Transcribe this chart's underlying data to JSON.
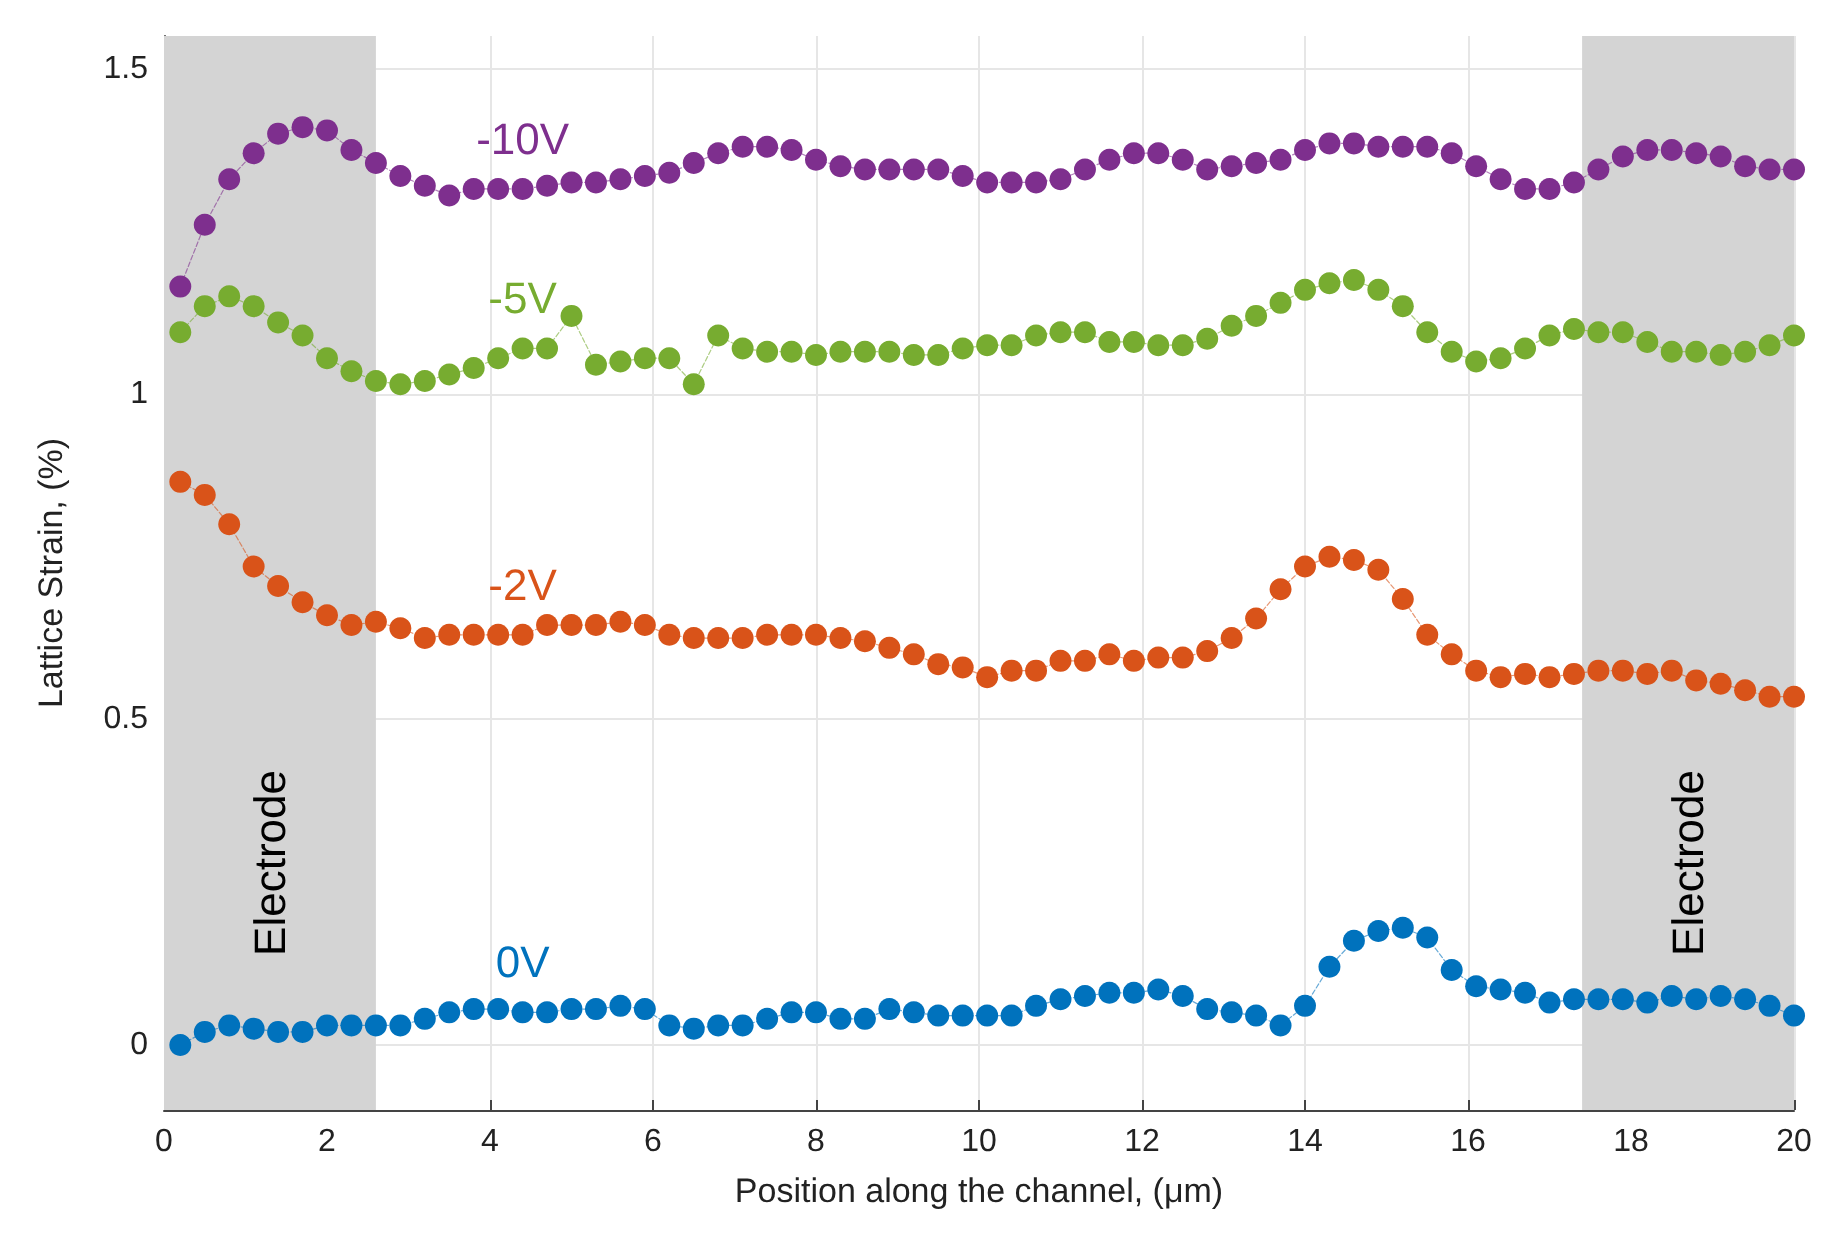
{
  "chart_data": {
    "type": "line",
    "xlabel": "Position along the channel, (μm)",
    "ylabel": "Lattice Strain, (%)",
    "x": [
      0.2,
      0.5,
      0.8,
      1.1,
      1.4,
      1.7,
      2.0,
      2.3,
      2.6,
      2.9,
      3.2,
      3.5,
      3.8,
      4.1,
      4.4,
      4.7,
      5.0,
      5.3,
      5.6,
      5.9,
      6.2,
      6.5,
      6.8,
      7.1,
      7.4,
      7.7,
      8.0,
      8.3,
      8.6,
      8.9,
      9.2,
      9.5,
      9.8,
      10.1,
      10.4,
      10.7,
      11.0,
      11.3,
      11.6,
      11.9,
      12.2,
      12.5,
      12.8,
      13.1,
      13.4,
      13.7,
      14.0,
      14.3,
      14.6,
      14.9,
      15.2,
      15.5,
      15.8,
      16.1,
      16.4,
      16.7,
      17.0,
      17.3,
      17.6,
      17.9,
      18.2,
      18.5,
      18.8,
      19.1,
      19.4,
      19.7,
      20.0
    ],
    "series": [
      {
        "name": "-10V",
        "color": "#7e2f8e",
        "values": [
          1.165,
          1.26,
          1.33,
          1.37,
          1.4,
          1.41,
          1.405,
          1.375,
          1.355,
          1.335,
          1.32,
          1.305,
          1.315,
          1.315,
          1.315,
          1.32,
          1.325,
          1.325,
          1.33,
          1.335,
          1.34,
          1.355,
          1.37,
          1.38,
          1.38,
          1.375,
          1.36,
          1.35,
          1.345,
          1.345,
          1.345,
          1.345,
          1.335,
          1.325,
          1.325,
          1.325,
          1.33,
          1.345,
          1.36,
          1.37,
          1.37,
          1.36,
          1.345,
          1.35,
          1.355,
          1.36,
          1.375,
          1.385,
          1.385,
          1.38,
          1.38,
          1.38,
          1.37,
          1.35,
          1.33,
          1.315,
          1.315,
          1.325,
          1.345,
          1.365,
          1.375,
          1.375,
          1.37,
          1.365,
          1.35,
          1.345,
          1.345
        ]
      },
      {
        "name": "-5V",
        "color": "#77ac30",
        "values": [
          1.095,
          1.135,
          1.15,
          1.135,
          1.11,
          1.09,
          1.055,
          1.035,
          1.02,
          1.015,
          1.02,
          1.03,
          1.04,
          1.055,
          1.07,
          1.07,
          1.12,
          1.045,
          1.05,
          1.055,
          1.055,
          1.015,
          1.09,
          1.07,
          1.065,
          1.065,
          1.06,
          1.065,
          1.065,
          1.065,
          1.06,
          1.06,
          1.07,
          1.075,
          1.075,
          1.09,
          1.095,
          1.095,
          1.08,
          1.08,
          1.075,
          1.075,
          1.085,
          1.105,
          1.12,
          1.14,
          1.16,
          1.17,
          1.175,
          1.16,
          1.135,
          1.095,
          1.065,
          1.05,
          1.055,
          1.07,
          1.09,
          1.1,
          1.095,
          1.095,
          1.08,
          1.065,
          1.065,
          1.06,
          1.065,
          1.075,
          1.09
        ]
      },
      {
        "name": "-2V",
        "color": "#d95319",
        "values": [
          0.865,
          0.845,
          0.8,
          0.735,
          0.705,
          0.68,
          0.66,
          0.645,
          0.65,
          0.64,
          0.625,
          0.63,
          0.63,
          0.63,
          0.63,
          0.645,
          0.645,
          0.645,
          0.65,
          0.645,
          0.63,
          0.625,
          0.625,
          0.625,
          0.63,
          0.63,
          0.63,
          0.625,
          0.62,
          0.61,
          0.6,
          0.585,
          0.58,
          0.565,
          0.575,
          0.575,
          0.59,
          0.59,
          0.6,
          0.59,
          0.595,
          0.595,
          0.605,
          0.625,
          0.655,
          0.7,
          0.735,
          0.75,
          0.745,
          0.73,
          0.685,
          0.63,
          0.6,
          0.575,
          0.565,
          0.57,
          0.565,
          0.57,
          0.575,
          0.575,
          0.57,
          0.575,
          0.56,
          0.555,
          0.545,
          0.535,
          0.535
        ]
      },
      {
        "name": "0V",
        "color": "#0072bd",
        "values": [
          0.0,
          0.02,
          0.03,
          0.025,
          0.02,
          0.02,
          0.03,
          0.03,
          0.03,
          0.03,
          0.04,
          0.05,
          0.055,
          0.055,
          0.05,
          0.05,
          0.055,
          0.055,
          0.06,
          0.055,
          0.03,
          0.025,
          0.03,
          0.03,
          0.04,
          0.05,
          0.05,
          0.04,
          0.04,
          0.055,
          0.05,
          0.045,
          0.045,
          0.045,
          0.045,
          0.06,
          0.07,
          0.075,
          0.08,
          0.08,
          0.085,
          0.075,
          0.055,
          0.05,
          0.045,
          0.03,
          0.06,
          0.12,
          0.16,
          0.175,
          0.18,
          0.165,
          0.115,
          0.09,
          0.085,
          0.08,
          0.065,
          0.07,
          0.07,
          0.07,
          0.065,
          0.075,
          0.07,
          0.075,
          0.07,
          0.06,
          0.045
        ]
      }
    ],
    "xlim": [
      0,
      20
    ],
    "xticks": [
      0,
      2,
      4,
      6,
      8,
      10,
      12,
      14,
      16,
      18,
      20
    ],
    "ylim": [
      -0.1,
      1.55
    ],
    "yticks": [
      0,
      0.5,
      1,
      1.5
    ],
    "grid": true,
    "legend": false,
    "marker": "circle",
    "line_style": "dashed",
    "bands": [
      {
        "axis": "x",
        "from": 0,
        "to": 2.6,
        "label": "Electrode",
        "color": "#d4d4d4"
      },
      {
        "axis": "x",
        "from": 17.4,
        "to": 20,
        "label": "Electrode",
        "color": "#d4d4d4"
      }
    ]
  }
}
